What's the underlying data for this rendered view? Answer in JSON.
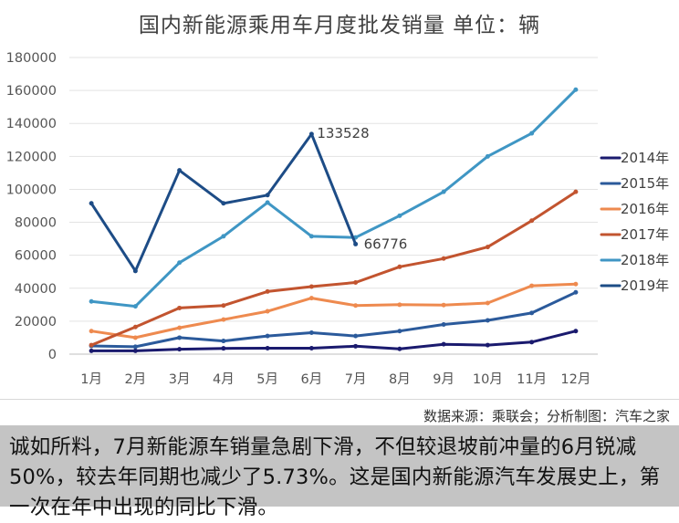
{
  "chart_title": "国内新能源乘用车月度批发销量  单位：辆",
  "source_note": "数据来源：乘联会；分析制图：汽车之家",
  "caption": "诚如所料，7月新能源车销量急剧下滑，不但较退坡前冲量的6月锐减50%，较去年同期也减少了5.73%。这是国内新能源汽车发展史上，第一次在年中出现的同比下滑。",
  "chart_data": {
    "type": "line",
    "title": "国内新能源乘用车月度批发销量  单位：辆",
    "xlabel": "",
    "ylabel": "",
    "ylim": [
      0,
      180000
    ],
    "yticks": [
      0,
      20000,
      40000,
      60000,
      80000,
      100000,
      120000,
      140000,
      160000,
      180000
    ],
    "ytick_labels": [
      "0",
      "20000",
      "40000",
      "60000",
      "80000",
      "100000",
      "120000",
      "140000",
      "160000",
      "180000"
    ],
    "categories": [
      "1月",
      "2月",
      "3月",
      "4月",
      "5月",
      "6月",
      "7月",
      "8月",
      "9月",
      "10月",
      "11月",
      "12月"
    ],
    "grid": true,
    "legend_position": "right",
    "series": [
      {
        "name": "2014年",
        "color": "#1a1a6e",
        "values": [
          2000,
          2000,
          3000,
          3500,
          3600,
          3600,
          4800,
          3200,
          6000,
          5500,
          7300,
          14000
        ]
      },
      {
        "name": "2015年",
        "color": "#2b5a9b",
        "values": [
          5000,
          4500,
          10000,
          8000,
          11000,
          13000,
          11000,
          14000,
          18000,
          20500,
          25000,
          37500
        ]
      },
      {
        "name": "2016年",
        "color": "#ee8a4f",
        "values": [
          14000,
          10000,
          16000,
          21000,
          26000,
          34000,
          29500,
          30000,
          29800,
          31000,
          41500,
          42500
        ]
      },
      {
        "name": "2017年",
        "color": "#c2542f",
        "values": [
          5500,
          16500,
          28000,
          29500,
          38000,
          41000,
          43500,
          53000,
          58000,
          65000,
          81000,
          98500
        ]
      },
      {
        "name": "2018年",
        "color": "#3f96c4",
        "values": [
          32000,
          29000,
          55500,
          71500,
          92000,
          71500,
          70800,
          84000,
          98500,
          120000,
          134000,
          160500
        ]
      },
      {
        "name": "2019年",
        "color": "#1d4c86",
        "values": [
          91500,
          50500,
          111500,
          91500,
          96500,
          133528,
          66776,
          null,
          null,
          null,
          null,
          null
        ]
      }
    ],
    "annotations": [
      "133528",
      "66776"
    ]
  }
}
